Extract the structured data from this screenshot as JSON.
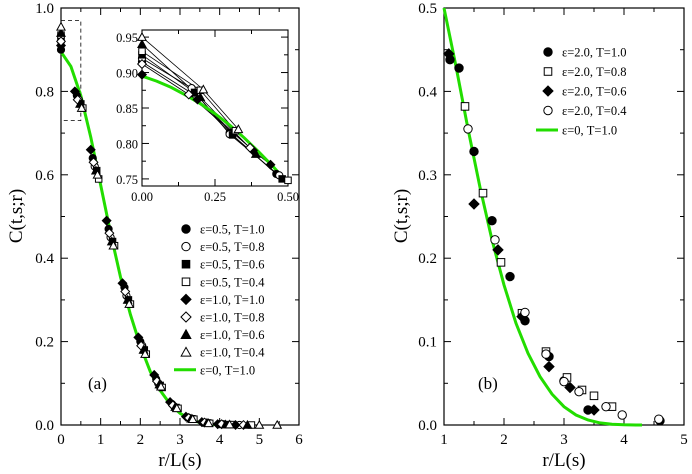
{
  "chart_data": [
    {
      "type": "scatter",
      "panel_label": "(a)",
      "xlabel": "r/L(s)",
      "ylabel": "C(t,s;r)",
      "xlim": [
        0,
        6
      ],
      "ylim": [
        0,
        1.0
      ],
      "xticks": [
        "0",
        "1",
        "2",
        "3",
        "4",
        "5",
        "6"
      ],
      "yticks": [
        "0.0",
        "0.2",
        "0.4",
        "0.6",
        "0.8",
        "1.0"
      ],
      "zoom_box": {
        "x": [
          0,
          0.5
        ],
        "y": [
          0.73,
          0.97
        ]
      },
      "legend_position": "bottom-right",
      "curve": {
        "name": "ε=0, T=1.0",
        "color": "#22dd00",
        "x": [
          0,
          0.25,
          0.5,
          0.75,
          1.0,
          1.25,
          1.5,
          1.75,
          2.0,
          2.25,
          2.5,
          2.75,
          3.0,
          3.25,
          3.5,
          3.75,
          4.0,
          4.2,
          4.35
        ],
        "y": [
          0.895,
          0.86,
          0.79,
          0.69,
          0.575,
          0.46,
          0.355,
          0.265,
          0.19,
          0.128,
          0.083,
          0.05,
          0.028,
          0.014,
          0.006,
          0.002,
          0.0005,
          0.0,
          0.0
        ]
      },
      "series": [
        {
          "name": "ε=0.5, T=1.0",
          "marker": "circle",
          "filled": true,
          "x": [
            0.0,
            0.4,
            0.8,
            1.2,
            1.6,
            2.0,
            2.4,
            2.8,
            3.2,
            3.6,
            4.0
          ],
          "y": [
            0.9,
            0.79,
            0.64,
            0.47,
            0.33,
            0.2,
            0.11,
            0.05,
            0.018,
            0.006,
            0.002
          ]
        },
        {
          "name": "ε=0.5, T=0.8",
          "marker": "circle",
          "filled": false,
          "x": [
            0.0,
            0.45,
            0.85,
            1.25,
            1.65,
            2.05,
            2.45,
            2.85,
            3.25,
            3.65,
            4.1,
            4.5
          ],
          "y": [
            0.92,
            0.78,
            0.62,
            0.45,
            0.31,
            0.19,
            0.1,
            0.045,
            0.016,
            0.005,
            0.002,
            0.0
          ]
        },
        {
          "name": "ε=0.5, T=0.6",
          "marker": "square",
          "filled": true,
          "x": [
            0.0,
            0.5,
            0.9,
            1.3,
            1.7,
            2.1,
            2.5,
            2.9,
            3.3,
            3.7,
            4.2
          ],
          "y": [
            0.93,
            0.77,
            0.61,
            0.44,
            0.3,
            0.18,
            0.095,
            0.042,
            0.015,
            0.005,
            0.001
          ]
        },
        {
          "name": "ε=0.5, T=0.4",
          "marker": "square",
          "filled": false,
          "x": [
            0.0,
            0.55,
            0.95,
            1.35,
            1.75,
            2.15,
            2.55,
            2.95,
            3.35,
            3.75,
            4.3,
            4.8
          ],
          "y": [
            0.935,
            0.76,
            0.59,
            0.43,
            0.29,
            0.17,
            0.09,
            0.04,
            0.014,
            0.004,
            0.001,
            0.0
          ]
        },
        {
          "name": "ε=1.0, T=1.0",
          "marker": "diamond",
          "filled": true,
          "x": [
            0.0,
            0.35,
            0.75,
            1.15,
            1.55,
            1.95,
            2.35,
            2.75,
            3.15,
            3.55,
            3.95,
            4.4
          ],
          "y": [
            0.91,
            0.8,
            0.66,
            0.49,
            0.34,
            0.21,
            0.12,
            0.055,
            0.02,
            0.007,
            0.002,
            0.0
          ]
        },
        {
          "name": "ε=1.0, T=0.8",
          "marker": "diamond",
          "filled": false,
          "x": [
            0.0,
            0.42,
            0.82,
            1.22,
            1.62,
            2.02,
            2.42,
            2.82,
            3.22,
            3.62,
            4.05,
            4.6
          ],
          "y": [
            0.92,
            0.78,
            0.63,
            0.46,
            0.32,
            0.19,
            0.105,
            0.047,
            0.017,
            0.006,
            0.002,
            0.0
          ]
        },
        {
          "name": "ε=1.0, T=0.6",
          "marker": "triangle",
          "filled": true,
          "x": [
            0.0,
            0.48,
            0.88,
            1.28,
            1.68,
            2.08,
            2.48,
            2.88,
            3.28,
            3.68,
            4.15,
            4.7
          ],
          "y": [
            0.94,
            0.77,
            0.61,
            0.44,
            0.3,
            0.18,
            0.097,
            0.043,
            0.015,
            0.005,
            0.001,
            0.0
          ]
        },
        {
          "name": "ε=1.0, T=0.4",
          "marker": "triangle",
          "filled": false,
          "x": [
            0.0,
            0.52,
            0.92,
            1.32,
            1.72,
            2.12,
            2.52,
            2.92,
            3.32,
            3.72,
            4.25,
            5.0,
            5.45
          ],
          "y": [
            0.955,
            0.76,
            0.6,
            0.43,
            0.29,
            0.17,
            0.092,
            0.04,
            0.014,
            0.004,
            0.001,
            0.0,
            0.0
          ]
        }
      ],
      "inset": {
        "xlim": [
          0,
          0.5
        ],
        "ylim": [
          0.74,
          0.96
        ],
        "xticks": [
          "0.00",
          "0.25",
          "0.50"
        ],
        "yticks": [
          "0.75",
          "0.80",
          "0.85",
          "0.90",
          "0.95"
        ],
        "curve": {
          "x": [
            0,
            0.05,
            0.1,
            0.15,
            0.2,
            0.25,
            0.3,
            0.35,
            0.4,
            0.45,
            0.5
          ],
          "y": [
            0.895,
            0.888,
            0.879,
            0.868,
            0.856,
            0.842,
            0.826,
            0.808,
            0.788,
            0.767,
            0.744
          ]
        },
        "series": [
          {
            "marker": "circle",
            "filled": true,
            "x": [
              0.0,
              0.17,
              0.3,
              0.46
            ],
            "y": [
              0.915,
              0.871,
              0.815,
              0.757
            ]
          },
          {
            "marker": "circle",
            "filled": false,
            "x": [
              0.0,
              0.17,
              0.3,
              0.47
            ],
            "y": [
              0.92,
              0.878,
              0.813,
              0.755
            ]
          },
          {
            "marker": "square",
            "filled": true,
            "x": [
              0.0,
              0.18,
              0.31,
              0.48
            ],
            "y": [
              0.925,
              0.872,
              0.812,
              0.75
            ]
          },
          {
            "marker": "square",
            "filled": false,
            "x": [
              0.0,
              0.2,
              0.32,
              0.5
            ],
            "y": [
              0.93,
              0.875,
              0.818,
              0.748
            ]
          },
          {
            "marker": "diamond",
            "filled": true,
            "x": [
              0.0,
              0.19,
              0.38,
              0.44
            ],
            "y": [
              0.897,
              0.862,
              0.79,
              0.77
            ]
          },
          {
            "marker": "diamond",
            "filled": false,
            "x": [
              0.0,
              0.16,
              0.37
            ],
            "y": [
              0.912,
              0.869,
              0.794
            ]
          },
          {
            "marker": "triangle",
            "filled": true,
            "x": [
              0.0,
              0.2,
              0.39
            ],
            "y": [
              0.94,
              0.865,
              0.785
            ]
          },
          {
            "marker": "triangle",
            "filled": false,
            "x": [
              0.0,
              0.21,
              0.33
            ],
            "y": [
              0.95,
              0.876,
              0.82
            ]
          }
        ]
      }
    },
    {
      "type": "scatter",
      "panel_label": "(b)",
      "xlabel": "r/L(s)",
      "ylabel": "C(t,s;r)",
      "xlim": [
        1,
        5
      ],
      "ylim": [
        0,
        0.5
      ],
      "xticks": [
        "1",
        "2",
        "3",
        "4",
        "5"
      ],
      "yticks": [
        "0.0",
        "0.1",
        "0.2",
        "0.3",
        "0.4",
        "0.5"
      ],
      "legend_position": "top-right",
      "curve": {
        "name": "ε=0, T=1.0",
        "color": "#22dd00",
        "x": [
          1.0,
          1.2,
          1.4,
          1.6,
          1.8,
          2.0,
          2.2,
          2.4,
          2.6,
          2.8,
          3.0,
          3.2,
          3.4,
          3.6,
          3.8,
          4.0,
          4.2,
          4.3
        ],
        "y": [
          0.5,
          0.43,
          0.355,
          0.285,
          0.222,
          0.168,
          0.122,
          0.086,
          0.058,
          0.037,
          0.022,
          0.012,
          0.006,
          0.0025,
          0.0008,
          0.0002,
          0.0,
          0.0
        ]
      },
      "series": [
        {
          "name": "ε=2.0, T=1.0",
          "marker": "circle",
          "filled": true,
          "x": [
            1.1,
            1.25,
            1.5,
            1.8,
            2.1,
            2.35,
            2.75,
            3.0,
            3.4,
            4.6
          ],
          "y": [
            0.438,
            0.428,
            0.328,
            0.245,
            0.178,
            0.125,
            0.082,
            0.053,
            0.018,
            0.005
          ]
        },
        {
          "name": "ε=2.0, T=0.8",
          "marker": "square",
          "filled": false,
          "x": [
            1.35,
            1.65,
            1.95,
            2.3,
            2.7,
            3.05,
            3.3,
            3.5,
            3.8
          ],
          "y": [
            0.382,
            0.278,
            0.195,
            0.134,
            0.088,
            0.057,
            0.042,
            0.035,
            0.022
          ]
        },
        {
          "name": "ε=2.0, T=0.6",
          "marker": "diamond",
          "filled": true,
          "x": [
            1.08,
            1.5,
            1.9,
            2.3,
            2.75,
            3.1,
            3.5
          ],
          "y": [
            0.445,
            0.265,
            0.21,
            0.13,
            0.07,
            0.045,
            0.018
          ]
        },
        {
          "name": "ε=2.0, T=0.4",
          "marker": "circle",
          "filled": false,
          "x": [
            1.4,
            1.85,
            2.35,
            2.7,
            3.0,
            3.25,
            3.7,
            3.97,
            4.58
          ],
          "y": [
            0.355,
            0.222,
            0.135,
            0.085,
            0.052,
            0.04,
            0.022,
            0.012,
            0.007
          ]
        }
      ]
    }
  ]
}
